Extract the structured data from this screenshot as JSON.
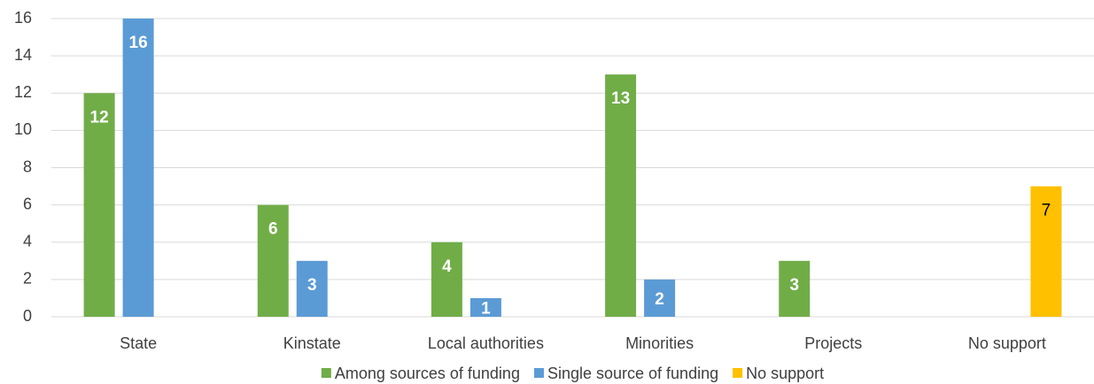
{
  "chart_data": {
    "type": "bar",
    "categories": [
      "State",
      "Kinstate",
      "Local authorities",
      "Minorities",
      "Projects",
      "No support"
    ],
    "series": [
      {
        "name": "Among sources of funding",
        "color": "#70ad47",
        "label_color": "#ffffff",
        "values": [
          12,
          6,
          4,
          13,
          3,
          null
        ]
      },
      {
        "name": "Single source of funding",
        "color": "#5b9bd5",
        "label_color": "#ffffff",
        "values": [
          16,
          3,
          1,
          2,
          null,
          null
        ]
      },
      {
        "name": "No support",
        "color": "#ffc000",
        "label_color": "#000000",
        "values": [
          null,
          null,
          null,
          null,
          null,
          7
        ]
      }
    ],
    "ylim": [
      0,
      16
    ],
    "yticks": [
      0,
      2,
      4,
      6,
      8,
      10,
      12,
      14,
      16
    ],
    "grid": true,
    "legend": "bottom"
  }
}
